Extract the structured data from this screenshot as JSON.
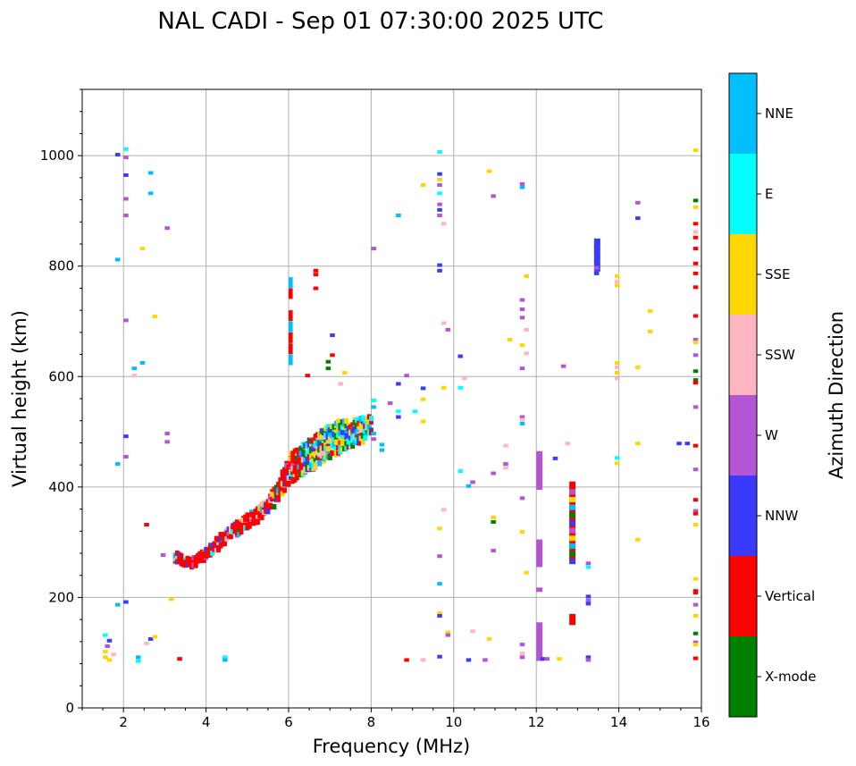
{
  "chart_data": {
    "type": "scatter",
    "title": "NAL CADI - Sep 01 07:30:00 2025 UTC",
    "xlabel": "Frequency (MHz)",
    "ylabel": "Virtual height (km)",
    "xlim": [
      1,
      16
    ],
    "ylim": [
      0,
      1120
    ],
    "xticks": [
      2,
      4,
      6,
      8,
      10,
      12,
      14,
      16
    ],
    "yticks": [
      0,
      200,
      400,
      600,
      800,
      1000
    ],
    "grid": true,
    "colorbar": {
      "label": "Azimuth Direction",
      "categories": [
        {
          "name": "X-mode",
          "color": "#008000"
        },
        {
          "name": "Vertical",
          "color": "#ff0000"
        },
        {
          "name": "NNW",
          "color": "#3a3aff"
        },
        {
          "name": "W",
          "color": "#b455d6"
        },
        {
          "name": "SSW",
          "color": "#ffb6c1"
        },
        {
          "name": "SSE",
          "color": "#ffd700"
        },
        {
          "name": "E",
          "color": "#00ffff"
        },
        {
          "name": "NNE",
          "color": "#00bfff"
        }
      ]
    },
    "trace_main": {
      "description_free": true,
      "x": [
        3.2,
        3.4,
        3.6,
        3.8,
        4.0,
        4.2,
        4.4,
        4.6,
        4.8,
        5.0,
        5.2,
        5.4,
        5.6,
        5.8,
        6.0,
        6.2,
        6.4,
        6.6,
        6.8,
        7.0,
        7.2,
        7.4,
        7.6,
        7.8,
        8.0
      ],
      "y": [
        280,
        270,
        268,
        275,
        285,
        300,
        315,
        325,
        335,
        345,
        355,
        370,
        385,
        410,
        440,
        450,
        460,
        470,
        480,
        490,
        495,
        500,
        505,
        510,
        520
      ],
      "spread": [
        18,
        18,
        18,
        20,
        22,
        25,
        25,
        25,
        25,
        25,
        28,
        30,
        35,
        45,
        55,
        55,
        60,
        60,
        60,
        60,
        55,
        50,
        45,
        40,
        35
      ]
    },
    "vertical_column_E": {
      "x": [
        6.0,
        6.0,
        6.0,
        6.0,
        6.0,
        6.0,
        6.0
      ],
      "y": [
        780,
        760,
        720,
        700,
        680,
        660,
        640
      ]
    },
    "points": [
      {
        "x": 1.5,
        "y": 95,
        "c": 5
      },
      {
        "x": 1.5,
        "y": 105,
        "c": 5
      },
      {
        "x": 1.55,
        "y": 115,
        "c": 3
      },
      {
        "x": 1.6,
        "y": 125,
        "c": 2
      },
      {
        "x": 1.5,
        "y": 135,
        "c": 6
      },
      {
        "x": 1.6,
        "y": 90,
        "c": 5
      },
      {
        "x": 1.7,
        "y": 100,
        "c": 4
      },
      {
        "x": 2.3,
        "y": 95,
        "c": 7
      },
      {
        "x": 2.3,
        "y": 88,
        "c": 6
      },
      {
        "x": 2.5,
        "y": 120,
        "c": 4
      },
      {
        "x": 2.6,
        "y": 128,
        "c": 2
      },
      {
        "x": 2.7,
        "y": 132,
        "c": 5
      },
      {
        "x": 3.3,
        "y": 92,
        "c": 1
      },
      {
        "x": 4.4,
        "y": 95,
        "c": 6
      },
      {
        "x": 4.4,
        "y": 90,
        "c": 7
      },
      {
        "x": 3.1,
        "y": 200,
        "c": 5
      },
      {
        "x": 2.9,
        "y": 280,
        "c": 3
      },
      {
        "x": 2.5,
        "y": 335,
        "c": 1
      },
      {
        "x": 2.0,
        "y": 195,
        "c": 2
      },
      {
        "x": 1.8,
        "y": 190,
        "c": 7
      },
      {
        "x": 3.0,
        "y": 485,
        "c": 3
      },
      {
        "x": 3.0,
        "y": 500,
        "c": 3
      },
      {
        "x": 2.0,
        "y": 495,
        "c": 2
      },
      {
        "x": 2.0,
        "y": 458,
        "c": 3
      },
      {
        "x": 1.8,
        "y": 445,
        "c": 7
      },
      {
        "x": 2.4,
        "y": 628,
        "c": 7
      },
      {
        "x": 2.2,
        "y": 618,
        "c": 7
      },
      {
        "x": 2.2,
        "y": 605,
        "c": 4
      },
      {
        "x": 2.7,
        "y": 712,
        "c": 5
      },
      {
        "x": 2.0,
        "y": 705,
        "c": 3
      },
      {
        "x": 2.4,
        "y": 835,
        "c": 5
      },
      {
        "x": 1.8,
        "y": 815,
        "c": 7
      },
      {
        "x": 3.0,
        "y": 872,
        "c": 3
      },
      {
        "x": 2.6,
        "y": 935,
        "c": 7
      },
      {
        "x": 2.0,
        "y": 895,
        "c": 3
      },
      {
        "x": 2.0,
        "y": 925,
        "c": 3
      },
      {
        "x": 2.0,
        "y": 968,
        "c": 2
      },
      {
        "x": 2.6,
        "y": 972,
        "c": 7
      },
      {
        "x": 1.8,
        "y": 1005,
        "c": 2
      },
      {
        "x": 2.0,
        "y": 1000,
        "c": 3
      },
      {
        "x": 2.0,
        "y": 1015,
        "c": 6
      },
      {
        "x": 6.6,
        "y": 795,
        "c": 1
      },
      {
        "x": 6.6,
        "y": 788,
        "c": 1
      },
      {
        "x": 6.6,
        "y": 763,
        "c": 1
      },
      {
        "x": 6.4,
        "y": 605,
        "c": 1
      },
      {
        "x": 7.0,
        "y": 678,
        "c": 2
      },
      {
        "x": 7.0,
        "y": 642,
        "c": 1
      },
      {
        "x": 6.9,
        "y": 630,
        "c": 0
      },
      {
        "x": 6.9,
        "y": 618,
        "c": 0
      },
      {
        "x": 7.3,
        "y": 610,
        "c": 5
      },
      {
        "x": 7.2,
        "y": 590,
        "c": 4
      },
      {
        "x": 8.0,
        "y": 835,
        "c": 3
      },
      {
        "x": 8.6,
        "y": 895,
        "c": 7
      },
      {
        "x": 9.2,
        "y": 950,
        "c": 5
      },
      {
        "x": 8.4,
        "y": 555,
        "c": 3
      },
      {
        "x": 8.6,
        "y": 590,
        "c": 2
      },
      {
        "x": 8.8,
        "y": 605,
        "c": 3
      },
      {
        "x": 9.0,
        "y": 540,
        "c": 6
      },
      {
        "x": 9.2,
        "y": 562,
        "c": 5
      },
      {
        "x": 9.2,
        "y": 582,
        "c": 2
      },
      {
        "x": 9.2,
        "y": 522,
        "c": 5
      },
      {
        "x": 8.6,
        "y": 540,
        "c": 6
      },
      {
        "x": 8.6,
        "y": 530,
        "c": 2
      },
      {
        "x": 8.2,
        "y": 470,
        "c": 7
      },
      {
        "x": 8.2,
        "y": 480,
        "c": 7
      },
      {
        "x": 8.0,
        "y": 490,
        "c": 3
      },
      {
        "x": 8.0,
        "y": 500,
        "c": 7
      },
      {
        "x": 8.0,
        "y": 560,
        "c": 6
      },
      {
        "x": 8.0,
        "y": 548,
        "c": 7
      },
      {
        "x": 9.6,
        "y": 1010,
        "c": 6
      },
      {
        "x": 9.6,
        "y": 970,
        "c": 2
      },
      {
        "x": 9.6,
        "y": 960,
        "c": 5
      },
      {
        "x": 9.6,
        "y": 950,
        "c": 3
      },
      {
        "x": 9.6,
        "y": 935,
        "c": 6
      },
      {
        "x": 9.6,
        "y": 915,
        "c": 3
      },
      {
        "x": 9.6,
        "y": 905,
        "c": 2
      },
      {
        "x": 9.6,
        "y": 895,
        "c": 3
      },
      {
        "x": 9.7,
        "y": 880,
        "c": 4
      },
      {
        "x": 9.6,
        "y": 805,
        "c": 2
      },
      {
        "x": 9.6,
        "y": 795,
        "c": 2
      },
      {
        "x": 9.7,
        "y": 700,
        "c": 4
      },
      {
        "x": 9.8,
        "y": 688,
        "c": 3
      },
      {
        "x": 9.7,
        "y": 583,
        "c": 5
      },
      {
        "x": 10.1,
        "y": 583,
        "c": 6
      },
      {
        "x": 10.1,
        "y": 640,
        "c": 2
      },
      {
        "x": 10.2,
        "y": 600,
        "c": 4
      },
      {
        "x": 10.1,
        "y": 432,
        "c": 6
      },
      {
        "x": 10.3,
        "y": 405,
        "c": 7
      },
      {
        "x": 10.4,
        "y": 412,
        "c": 3
      },
      {
        "x": 9.7,
        "y": 362,
        "c": 4
      },
      {
        "x": 9.6,
        "y": 328,
        "c": 5
      },
      {
        "x": 9.6,
        "y": 278,
        "c": 3
      },
      {
        "x": 9.6,
        "y": 228,
        "c": 7
      },
      {
        "x": 9.6,
        "y": 175,
        "c": 5
      },
      {
        "x": 9.6,
        "y": 170,
        "c": 2
      },
      {
        "x": 9.8,
        "y": 140,
        "c": 5
      },
      {
        "x": 9.8,
        "y": 135,
        "c": 3
      },
      {
        "x": 10.4,
        "y": 142,
        "c": 4
      },
      {
        "x": 10.8,
        "y": 128,
        "c": 5
      },
      {
        "x": 9.6,
        "y": 96,
        "c": 2
      },
      {
        "x": 10.3,
        "y": 90,
        "c": 2
      },
      {
        "x": 10.7,
        "y": 90,
        "c": 3
      },
      {
        "x": 8.8,
        "y": 90,
        "c": 1
      },
      {
        "x": 9.2,
        "y": 90,
        "c": 4
      },
      {
        "x": 10.8,
        "y": 975,
        "c": 5
      },
      {
        "x": 10.9,
        "y": 930,
        "c": 3
      },
      {
        "x": 11.6,
        "y": 952,
        "c": 3
      },
      {
        "x": 11.6,
        "y": 946,
        "c": 7
      },
      {
        "x": 11.7,
        "y": 785,
        "c": 5
      },
      {
        "x": 11.6,
        "y": 742,
        "c": 3
      },
      {
        "x": 11.6,
        "y": 725,
        "c": 3
      },
      {
        "x": 11.6,
        "y": 710,
        "c": 3
      },
      {
        "x": 11.7,
        "y": 688,
        "c": 4
      },
      {
        "x": 11.3,
        "y": 670,
        "c": 5
      },
      {
        "x": 11.6,
        "y": 660,
        "c": 5
      },
      {
        "x": 11.7,
        "y": 645,
        "c": 4
      },
      {
        "x": 11.6,
        "y": 618,
        "c": 3
      },
      {
        "x": 11.6,
        "y": 530,
        "c": 3
      },
      {
        "x": 11.6,
        "y": 525,
        "c": 4
      },
      {
        "x": 11.6,
        "y": 518,
        "c": 7
      },
      {
        "x": 11.2,
        "y": 478,
        "c": 4
      },
      {
        "x": 11.2,
        "y": 445,
        "c": 3
      },
      {
        "x": 11.2,
        "y": 438,
        "c": 4
      },
      {
        "x": 10.9,
        "y": 428,
        "c": 3
      },
      {
        "x": 11.6,
        "y": 383,
        "c": 3
      },
      {
        "x": 10.9,
        "y": 348,
        "c": 5
      },
      {
        "x": 10.9,
        "y": 340,
        "c": 0
      },
      {
        "x": 11.6,
        "y": 322,
        "c": 5
      },
      {
        "x": 10.9,
        "y": 288,
        "c": 3
      },
      {
        "x": 11.7,
        "y": 248,
        "c": 5
      },
      {
        "x": 11.6,
        "y": 118,
        "c": 3
      },
      {
        "x": 11.6,
        "y": 102,
        "c": 4
      },
      {
        "x": 11.6,
        "y": 95,
        "c": 3
      },
      {
        "x": 12.6,
        "y": 622,
        "c": 3
      },
      {
        "x": 12.7,
        "y": 482,
        "c": 4
      },
      {
        "x": 12.4,
        "y": 455,
        "c": 2
      },
      {
        "x": 12.5,
        "y": 92,
        "c": 5
      },
      {
        "x": 12.1,
        "y": 92,
        "c": 2
      },
      {
        "x": 12.2,
        "y": 92,
        "c": 3
      },
      {
        "x": 13.4,
        "y": 840,
        "c": 2
      },
      {
        "x": 13.4,
        "y": 830,
        "c": 2
      },
      {
        "x": 13.4,
        "y": 815,
        "c": 2
      },
      {
        "x": 13.4,
        "y": 800,
        "c": 3
      },
      {
        "x": 13.4,
        "y": 790,
        "c": 2
      },
      {
        "x": 13.2,
        "y": 265,
        "c": 3
      },
      {
        "x": 13.2,
        "y": 258,
        "c": 6
      },
      {
        "x": 13.2,
        "y": 205,
        "c": 2
      },
      {
        "x": 13.2,
        "y": 198,
        "c": 3
      },
      {
        "x": 13.2,
        "y": 192,
        "c": 2
      },
      {
        "x": 13.2,
        "y": 95,
        "c": 2
      },
      {
        "x": 13.2,
        "y": 90,
        "c": 3
      },
      {
        "x": 13.9,
        "y": 785,
        "c": 5
      },
      {
        "x": 13.9,
        "y": 775,
        "c": 4
      },
      {
        "x": 13.9,
        "y": 768,
        "c": 5
      },
      {
        "x": 13.9,
        "y": 628,
        "c": 5
      },
      {
        "x": 13.9,
        "y": 620,
        "c": 4
      },
      {
        "x": 13.9,
        "y": 610,
        "c": 5
      },
      {
        "x": 13.9,
        "y": 600,
        "c": 4
      },
      {
        "x": 13.9,
        "y": 456,
        "c": 6
      },
      {
        "x": 13.9,
        "y": 446,
        "c": 5
      },
      {
        "x": 14.4,
        "y": 918,
        "c": 3
      },
      {
        "x": 14.4,
        "y": 890,
        "c": 2
      },
      {
        "x": 14.7,
        "y": 722,
        "c": 5
      },
      {
        "x": 14.7,
        "y": 685,
        "c": 5
      },
      {
        "x": 14.4,
        "y": 620,
        "c": 5
      },
      {
        "x": 14.4,
        "y": 482,
        "c": 5
      },
      {
        "x": 14.4,
        "y": 308,
        "c": 5
      },
      {
        "x": 15.4,
        "y": 482,
        "c": 2
      },
      {
        "x": 15.6,
        "y": 482,
        "c": 2
      },
      {
        "x": 15.8,
        "y": 1013,
        "c": 5
      },
      {
        "x": 15.8,
        "y": 922,
        "c": 0
      },
      {
        "x": 15.8,
        "y": 910,
        "c": 5
      },
      {
        "x": 15.8,
        "y": 880,
        "c": 1
      },
      {
        "x": 15.8,
        "y": 865,
        "c": 4
      },
      {
        "x": 15.8,
        "y": 855,
        "c": 1
      },
      {
        "x": 15.8,
        "y": 835,
        "c": 1
      },
      {
        "x": 15.8,
        "y": 808,
        "c": 1
      },
      {
        "x": 15.8,
        "y": 790,
        "c": 1
      },
      {
        "x": 15.8,
        "y": 765,
        "c": 1
      },
      {
        "x": 15.8,
        "y": 713,
        "c": 1
      },
      {
        "x": 15.8,
        "y": 670,
        "c": 3
      },
      {
        "x": 15.8,
        "y": 665,
        "c": 5
      },
      {
        "x": 15.8,
        "y": 642,
        "c": 3
      },
      {
        "x": 15.8,
        "y": 613,
        "c": 0
      },
      {
        "x": 15.8,
        "y": 597,
        "c": 0
      },
      {
        "x": 15.8,
        "y": 592,
        "c": 1
      },
      {
        "x": 15.8,
        "y": 548,
        "c": 3
      },
      {
        "x": 15.8,
        "y": 478,
        "c": 1
      },
      {
        "x": 15.8,
        "y": 435,
        "c": 3
      },
      {
        "x": 15.8,
        "y": 380,
        "c": 1
      },
      {
        "x": 15.8,
        "y": 360,
        "c": 3
      },
      {
        "x": 15.8,
        "y": 355,
        "c": 1
      },
      {
        "x": 15.8,
        "y": 335,
        "c": 5
      },
      {
        "x": 15.8,
        "y": 237,
        "c": 5
      },
      {
        "x": 15.8,
        "y": 215,
        "c": 1
      },
      {
        "x": 15.8,
        "y": 212,
        "c": 1
      },
      {
        "x": 15.8,
        "y": 190,
        "c": 3
      },
      {
        "x": 15.8,
        "y": 170,
        "c": 5
      },
      {
        "x": 15.8,
        "y": 138,
        "c": 0
      },
      {
        "x": 15.8,
        "y": 122,
        "c": 3
      },
      {
        "x": 15.8,
        "y": 118,
        "c": 5
      },
      {
        "x": 15.8,
        "y": 93,
        "c": 1
      }
    ],
    "columns": [
      {
        "x": 12.0,
        "y0": 395,
        "y1": 465,
        "c": 3
      },
      {
        "x": 12.0,
        "y0": 255,
        "y1": 305,
        "c": 3
      },
      {
        "x": 12.0,
        "y0": 85,
        "y1": 155,
        "c": 3
      },
      {
        "x": 12.0,
        "y0": 210,
        "y1": 218,
        "c": 3
      },
      {
        "x": 12.8,
        "y0": 265,
        "y1": 410,
        "c": 1
      },
      {
        "x": 12.8,
        "y0": 150,
        "y1": 170,
        "c": 1
      },
      {
        "x": 13.4,
        "y0": 790,
        "y1": 850,
        "c": 2
      }
    ]
  }
}
